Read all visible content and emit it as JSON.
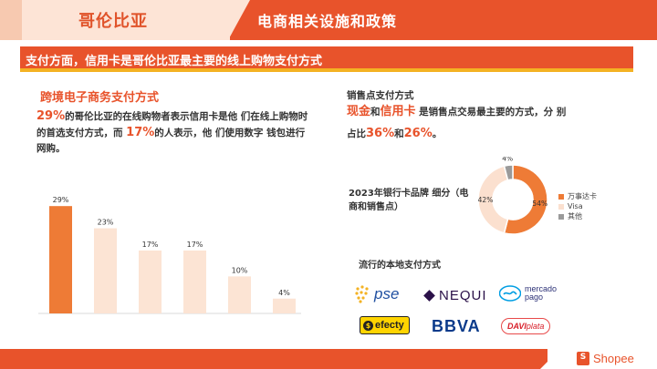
{
  "header": {
    "title": "哥伦比亚",
    "subtitle": "电商相关设施和政策"
  },
  "banner": {
    "text": "支付方面，信用卡是哥伦比亚最主要的线上购物支付方式"
  },
  "left": {
    "title": "跨境电子商务支付方式",
    "p_stat1": "29%",
    "p_text1": "的哥伦比亚的在线购物者表示信用卡是他 们在线上购物时的首选支付方式，而 ",
    "p_stat2": "17%",
    "p_text2": "的人表示，他 们使用数字 钱包进行网购。"
  },
  "chart_data": {
    "type": "bar",
    "categories": [
      "",
      "",
      "",
      "",
      "",
      ""
    ],
    "values": [
      29,
      23,
      17,
      17,
      10,
      4
    ],
    "data_labels": [
      "29%",
      "23%",
      "17%",
      "17%",
      "10%",
      "4%"
    ],
    "colors": [
      "#ee7b36",
      "#fce4d4",
      "#fce4d4",
      "#fce4d4",
      "#fce4d4",
      "#fce4d4"
    ],
    "title": "",
    "xlabel": "",
    "ylabel": "",
    "ylim": [
      0,
      32
    ]
  },
  "pos": {
    "title": "销售点支付方式",
    "cash": "现金",
    "and": "和",
    "credit": "信用卡",
    "text1": " 是销售点交易最主要的方式，分 别",
    "text2": "占比",
    "pct1": "36%",
    "and2": "和",
    "pct2": "26%",
    "end": "。"
  },
  "card_brand": {
    "title": "2023年银行卡品牌 细分（电商和销售点）",
    "donut": {
      "type": "pie",
      "slices": [
        {
          "name": "万事达卡",
          "value": 54,
          "label": "54%",
          "color": "#ee7b36"
        },
        {
          "name": "Visa",
          "value": 42,
          "label": "42%",
          "color": "#fbe0cf"
        },
        {
          "name": "其他",
          "value": 4,
          "label": "4%",
          "color": "#9a9a9a"
        }
      ]
    }
  },
  "local": {
    "title": "流行的本地支付方式",
    "logos": {
      "pse": "pse",
      "nequi": "NEQUI",
      "mercado1": "mercado",
      "mercado2": "pago",
      "efecty": "efecty",
      "bbva": "BBVA",
      "davi1": "DAVI",
      "davi2": "plata"
    }
  },
  "footer": {
    "brand": "Shopee",
    "bag_letter": "S"
  }
}
